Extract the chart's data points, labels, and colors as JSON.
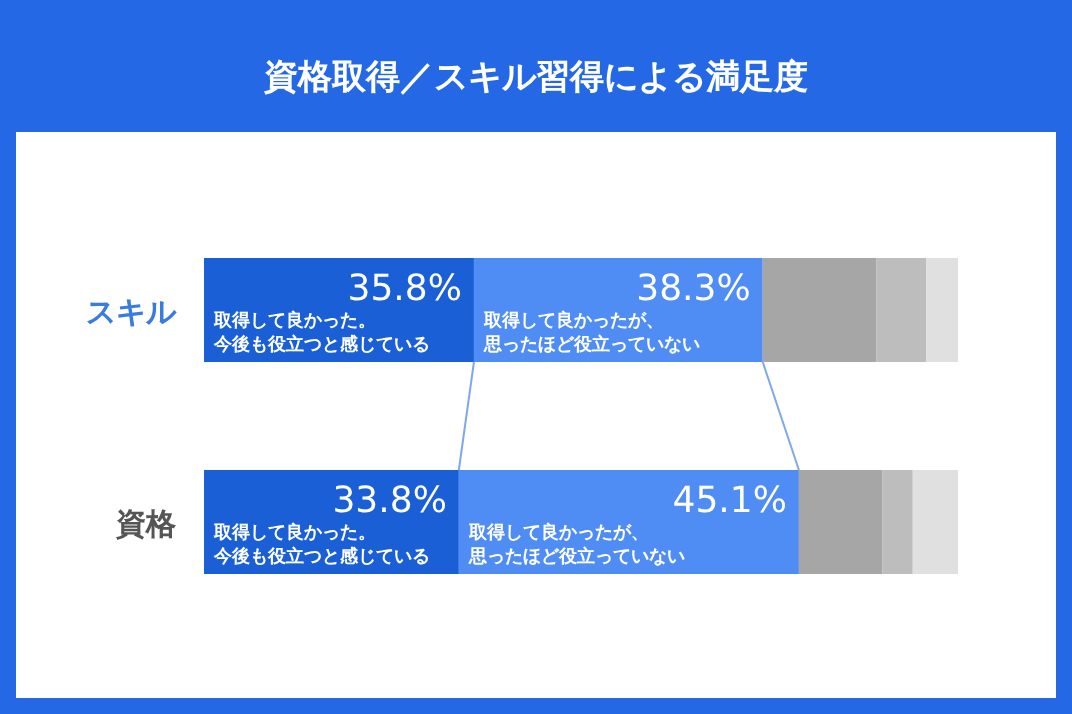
{
  "chart_data": {
    "type": "bar",
    "orientation": "horizontal",
    "stacked": true,
    "title": "資格取得／スキル習得による満足度",
    "categories": [
      "スキル",
      "資格"
    ],
    "series": [
      {
        "name": "取得して良かった。今後も役立つと感じている",
        "color": "#1a5fd6",
        "values": [
          35.8,
          33.8
        ],
        "value_labels": [
          "35.8%",
          "33.8%"
        ]
      },
      {
        "name": "取得して良かったが、思ったほど役立っていない",
        "color": "#4f8df5",
        "values": [
          38.3,
          45.1
        ],
        "value_labels": [
          "38.3%",
          "45.1%"
        ]
      },
      {
        "color": "#a6a6a6",
        "values": [
          15.1,
          11.1
        ]
      },
      {
        "color": "#bdbdbd",
        "values": [
          6.6,
          4.0
        ]
      },
      {
        "color": "#e0e0e0",
        "values": [
          4.2,
          6.0
        ]
      }
    ]
  }
}
